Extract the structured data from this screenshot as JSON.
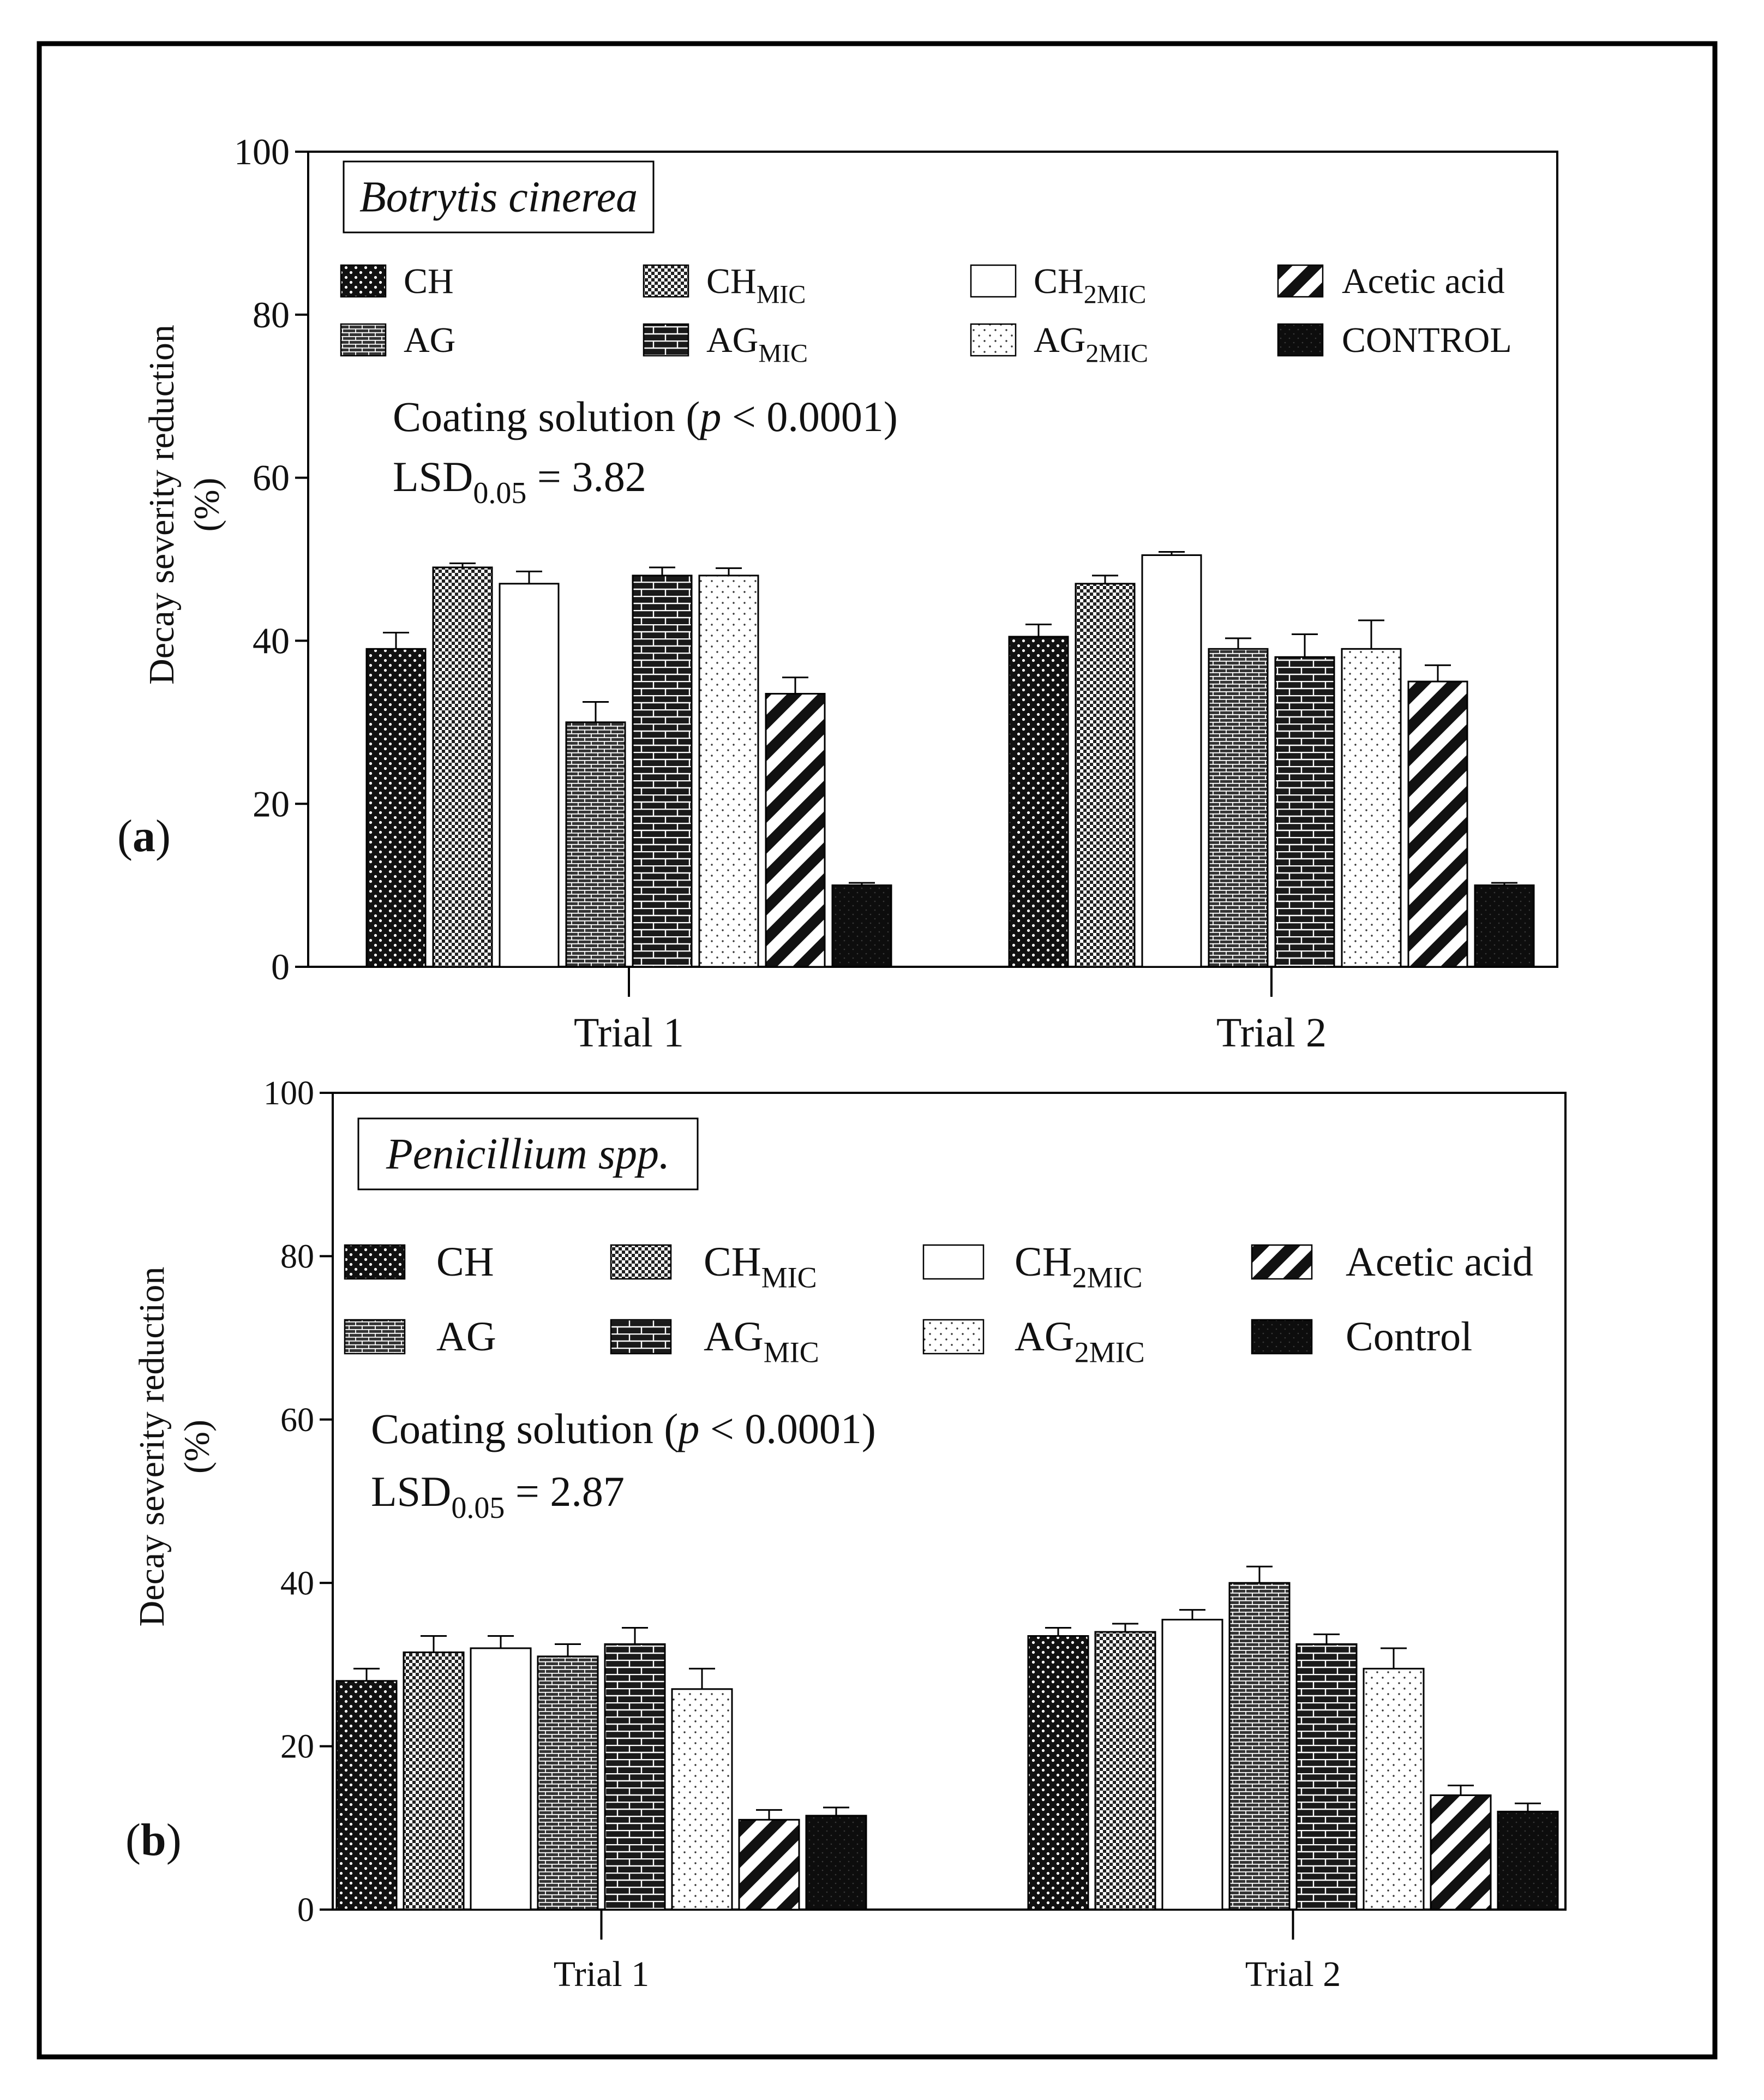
{
  "chart_data": [
    {
      "type": "bar",
      "panel_label": "a",
      "title": "Botrytis cinerea",
      "ylabel": "Decay severity reduction (%)",
      "xlabel": "",
      "ylim": [
        0,
        100
      ],
      "yticks": [
        0,
        20,
        40,
        60,
        80,
        100
      ],
      "categories": [
        "Trial 1",
        "Trial 2"
      ],
      "annotation_line1": "Coating solution (p < 0.0001)",
      "annotation_line1_parts": {
        "before": "Coating solution (",
        "p": "p",
        "after": " < 0.0001)"
      },
      "annotation_line2": "LSD0.05 = 3.82",
      "annotation_line2_parts": {
        "base": "LSD",
        "sub": "0.05",
        "value": " = 3.82"
      },
      "legend": [
        {
          "name": "CH",
          "base": "CH",
          "sub": "",
          "pattern": "dots-dark"
        },
        {
          "name": "AG",
          "base": "AG",
          "sub": "",
          "pattern": "brick-small"
        },
        {
          "name": "CHMIC",
          "base": "CH",
          "sub": "MIC",
          "pattern": "checker"
        },
        {
          "name": "AGMIC",
          "base": "AG",
          "sub": "MIC",
          "pattern": "brick-dark"
        },
        {
          "name": "CH2MIC",
          "base": "CH",
          "sub": "2MIC",
          "pattern": "white"
        },
        {
          "name": "AG2MIC",
          "base": "AG",
          "sub": "2MIC",
          "pattern": "dots-light"
        },
        {
          "name": "Acetic acid",
          "base": "Acetic acid",
          "sub": "",
          "pattern": "diag"
        },
        {
          "name": "CONTROL",
          "base": "CONTROL",
          "sub": "",
          "pattern": "solid-dark"
        }
      ],
      "series_order": [
        "CH",
        "CHMIC",
        "CH2MIC",
        "AG",
        "AGMIC",
        "AG2MIC",
        "Acetic acid",
        "CONTROL"
      ],
      "series": [
        {
          "name": "CH",
          "values": [
            39.0,
            40.5
          ],
          "errors": [
            2.0,
            1.5
          ]
        },
        {
          "name": "CHMIC",
          "values": [
            49.0,
            47.0
          ],
          "errors": [
            0.5,
            1.0
          ]
        },
        {
          "name": "CH2MIC",
          "values": [
            47.0,
            50.5
          ],
          "errors": [
            1.5,
            0.4
          ]
        },
        {
          "name": "AG",
          "values": [
            30.0,
            39.0
          ],
          "errors": [
            2.5,
            1.3
          ]
        },
        {
          "name": "AGMIC",
          "values": [
            48.0,
            38.0
          ],
          "errors": [
            1.0,
            2.8
          ]
        },
        {
          "name": "AG2MIC",
          "values": [
            48.0,
            39.0
          ],
          "errors": [
            0.9,
            3.5
          ]
        },
        {
          "name": "Acetic acid",
          "values": [
            33.5,
            35.0
          ],
          "errors": [
            2.0,
            2.0
          ]
        },
        {
          "name": "CONTROL",
          "values": [
            10.0,
            10.0
          ],
          "errors": [
            0.3,
            0.3
          ]
        }
      ]
    },
    {
      "type": "bar",
      "panel_label": "b",
      "title": "Penicillium spp.",
      "ylabel": "Decay severity reduction (%)",
      "xlabel": "",
      "ylim": [
        0,
        100
      ],
      "yticks": [
        0,
        20,
        40,
        60,
        80,
        100
      ],
      "categories": [
        "Trial 1",
        "Trial 2"
      ],
      "annotation_line1": "Coating solution (p < 0.0001)",
      "annotation_line1_parts": {
        "before": "Coating solution (",
        "p": "p",
        "after": " < 0.0001)"
      },
      "annotation_line2": "LSD0.05 = 2.87",
      "annotation_line2_parts": {
        "base": "LSD",
        "sub": "0.05",
        "value": " = 2.87"
      },
      "legend": [
        {
          "name": "CH",
          "base": "CH",
          "sub": "",
          "pattern": "dots-dark"
        },
        {
          "name": "AG",
          "base": "AG",
          "sub": "",
          "pattern": "brick-small"
        },
        {
          "name": "CHMIC",
          "base": "CH",
          "sub": "MIC",
          "pattern": "checker"
        },
        {
          "name": "AGMIC",
          "base": "AG",
          "sub": "MIC",
          "pattern": "brick-dark"
        },
        {
          "name": "CH2MIC",
          "base": "CH",
          "sub": "2MIC",
          "pattern": "white"
        },
        {
          "name": "AG2MIC",
          "base": "AG",
          "sub": "2MIC",
          "pattern": "dots-light"
        },
        {
          "name": "Acetic acid",
          "base": "Acetic acid",
          "sub": "",
          "pattern": "diag"
        },
        {
          "name": "Control",
          "base": "Control",
          "sub": "",
          "pattern": "solid-dark"
        }
      ],
      "series_order": [
        "CH",
        "CHMIC",
        "CH2MIC",
        "AG",
        "AGMIC",
        "AG2MIC",
        "Acetic acid",
        "Control"
      ],
      "series": [
        {
          "name": "CH",
          "values": [
            28.0,
            33.5
          ],
          "errors": [
            1.5,
            1.0
          ]
        },
        {
          "name": "CHMIC",
          "values": [
            31.5,
            34.0
          ],
          "errors": [
            2.0,
            1.0
          ]
        },
        {
          "name": "CH2MIC",
          "values": [
            32.0,
            35.5
          ],
          "errors": [
            1.5,
            1.2
          ]
        },
        {
          "name": "AG",
          "values": [
            31.0,
            40.0
          ],
          "errors": [
            1.5,
            2.0
          ]
        },
        {
          "name": "AGMIC",
          "values": [
            32.5,
            32.5
          ],
          "errors": [
            2.0,
            1.2
          ]
        },
        {
          "name": "AG2MIC",
          "values": [
            27.0,
            29.5
          ],
          "errors": [
            2.5,
            2.5
          ]
        },
        {
          "name": "Acetic acid",
          "values": [
            11.0,
            14.0
          ],
          "errors": [
            1.2,
            1.2
          ]
        },
        {
          "name": "Control",
          "values": [
            11.5,
            12.0
          ],
          "errors": [
            1.0,
            1.0
          ]
        }
      ]
    }
  ]
}
